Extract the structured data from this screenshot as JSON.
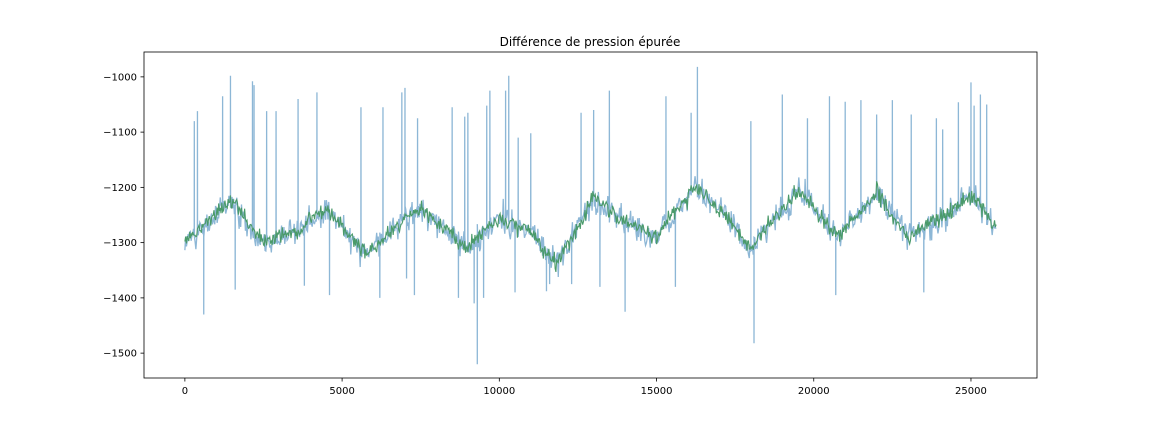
{
  "chart_data": {
    "type": "line",
    "title": "Différence de pression épurée",
    "xlabel": "",
    "ylabel": "",
    "xlim": [
      -1300,
      27100
    ],
    "ylim": [
      -1545,
      -955
    ],
    "grid": false,
    "x_ticks": [
      0,
      5000,
      10000,
      15000,
      20000,
      25000
    ],
    "x_tick_labels": [
      "0",
      "5000",
      "10000",
      "15000",
      "20000",
      "25000"
    ],
    "y_ticks": [
      -1000,
      -1100,
      -1200,
      -1300,
      -1400,
      -1500
    ],
    "y_tick_labels": [
      "−1000",
      "−1100",
      "−1200",
      "−1300",
      "−1400",
      "−1500"
    ],
    "series": [
      {
        "color": "#87b3d4",
        "style": "raw-noisy",
        "n_points": 25800,
        "baseline": {
          "x": [
            0,
            1500,
            2500,
            3500,
            4500,
            5800,
            7000,
            7500,
            9000,
            10000,
            11000,
            11800,
            13000,
            14000,
            15000,
            16200,
            17000,
            18000,
            19500,
            20800,
            22000,
            23000,
            24000,
            25000,
            25800
          ],
          "y": [
            -1300,
            -1225,
            -1300,
            -1280,
            -1240,
            -1320,
            -1255,
            -1240,
            -1310,
            -1255,
            -1280,
            -1340,
            -1220,
            -1260,
            -1290,
            -1200,
            -1240,
            -1310,
            -1205,
            -1290,
            -1210,
            -1290,
            -1255,
            -1215,
            -1270
          ]
        },
        "spikes": {
          "x": [
            300,
            400,
            600,
            1200,
            1450,
            1600,
            2150,
            2200,
            2600,
            2900,
            3600,
            3800,
            4200,
            4600,
            5600,
            6200,
            6300,
            6900,
            7000,
            7050,
            7300,
            7400,
            8500,
            8700,
            8900,
            9000,
            9200,
            9300,
            9500,
            9600,
            9700,
            10200,
            10300,
            10500,
            10600,
            11000,
            11500,
            11600,
            12300,
            12600,
            13000,
            13200,
            13500,
            14000,
            15300,
            15600,
            16100,
            16300,
            18000,
            18100,
            19000,
            19800,
            20500,
            20700,
            21000,
            21500,
            22000,
            22500,
            23100,
            23500,
            23900,
            24100,
            24600,
            25000,
            25100,
            25300,
            25500
          ],
          "y": [
            -1080,
            -1062,
            -1430,
            -1035,
            -998,
            -1385,
            -1008,
            -1015,
            -1062,
            -1062,
            -1040,
            -1378,
            -1028,
            -1395,
            -1055,
            -1400,
            -1055,
            -1028,
            -1020,
            -1365,
            -1395,
            -1075,
            -1055,
            -1400,
            -1072,
            -1065,
            -1410,
            -1520,
            -1400,
            -1052,
            -1025,
            -1025,
            -998,
            -1390,
            -1110,
            -1102,
            -1388,
            -1375,
            -1375,
            -1065,
            -1060,
            -1380,
            -1025,
            -1425,
            -1035,
            -1380,
            -1065,
            -982,
            -1080,
            -1482,
            -1032,
            -1075,
            -1035,
            -1395,
            -1045,
            -1042,
            -1068,
            -1042,
            -1068,
            -1390,
            -1075,
            -1095,
            -1046,
            -1010,
            -1052,
            -1032,
            -1050
          ]
        }
      },
      {
        "color": "#4a9a6a",
        "style": "filtered",
        "n_points": 25800
      }
    ]
  }
}
